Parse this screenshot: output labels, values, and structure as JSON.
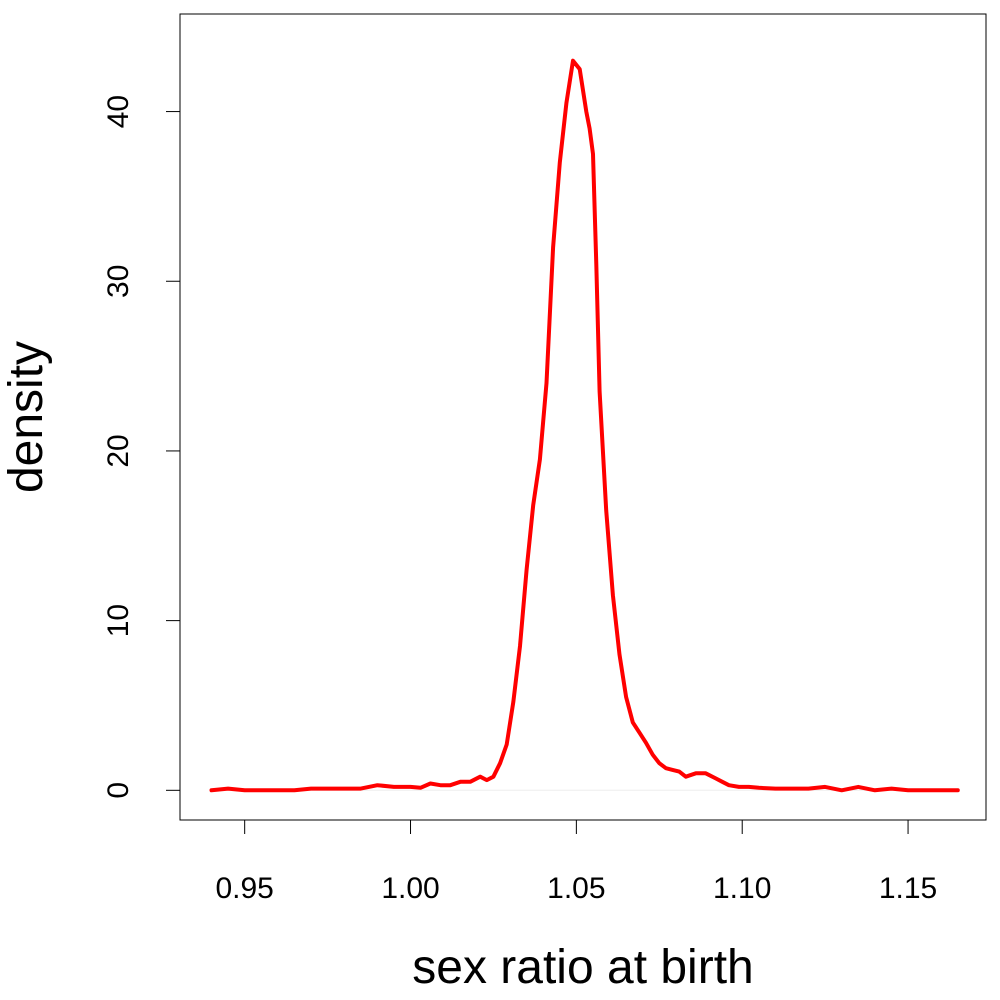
{
  "chart_data": {
    "type": "line",
    "xlabel": "sex ratio at birth",
    "ylabel": "density",
    "xlim": [
      0.9305,
      1.1735
    ],
    "ylim": [
      -1.75,
      45.75
    ],
    "x_ticks": [
      0.95,
      1.0,
      1.05,
      1.1,
      1.15
    ],
    "x_tick_labels": [
      "0.95",
      "1.00",
      "1.05",
      "1.10",
      "1.15"
    ],
    "y_ticks": [
      0,
      10,
      20,
      30,
      40
    ],
    "y_tick_labels": [
      "0",
      "10",
      "20",
      "30",
      "40"
    ],
    "grid": false,
    "baseline_y": 0,
    "series": [
      {
        "color": "#ff0000",
        "x": [
          0.94,
          0.945,
          0.95,
          0.955,
          0.96,
          0.965,
          0.97,
          0.975,
          0.98,
          0.985,
          0.99,
          0.995,
          1.0,
          1.003,
          1.006,
          1.009,
          1.012,
          1.015,
          1.018,
          1.021,
          1.023,
          1.025,
          1.027,
          1.029,
          1.031,
          1.033,
          1.035,
          1.037,
          1.039,
          1.041,
          1.043,
          1.045,
          1.047,
          1.049,
          1.051,
          1.053,
          1.054,
          1.055,
          1.056,
          1.057,
          1.059,
          1.061,
          1.063,
          1.065,
          1.067,
          1.069,
          1.071,
          1.073,
          1.075,
          1.077,
          1.079,
          1.081,
          1.083,
          1.086,
          1.089,
          1.092,
          1.094,
          1.096,
          1.099,
          1.102,
          1.105,
          1.11,
          1.115,
          1.12,
          1.125,
          1.13,
          1.135,
          1.14,
          1.145,
          1.15,
          1.155,
          1.16,
          1.165
        ],
        "y": [
          0.0,
          0.1,
          0.0,
          0.0,
          0.0,
          0.0,
          0.1,
          0.1,
          0.1,
          0.1,
          0.3,
          0.2,
          0.2,
          0.15,
          0.4,
          0.3,
          0.3,
          0.5,
          0.5,
          0.8,
          0.6,
          0.8,
          1.6,
          2.7,
          5.2,
          8.5,
          13.0,
          16.8,
          19.5,
          24.0,
          32.0,
          37.0,
          40.5,
          43.0,
          42.5,
          40.0,
          39.0,
          37.5,
          31.0,
          23.5,
          16.5,
          11.5,
          8.0,
          5.5,
          4.0,
          3.4,
          2.8,
          2.1,
          1.6,
          1.3,
          1.2,
          1.1,
          0.8,
          1.0,
          1.0,
          0.7,
          0.5,
          0.3,
          0.2,
          0.2,
          0.15,
          0.1,
          0.1,
          0.1,
          0.2,
          0.0,
          0.2,
          0.0,
          0.1,
          0.0,
          0.0,
          0.0,
          0.0
        ]
      }
    ]
  }
}
